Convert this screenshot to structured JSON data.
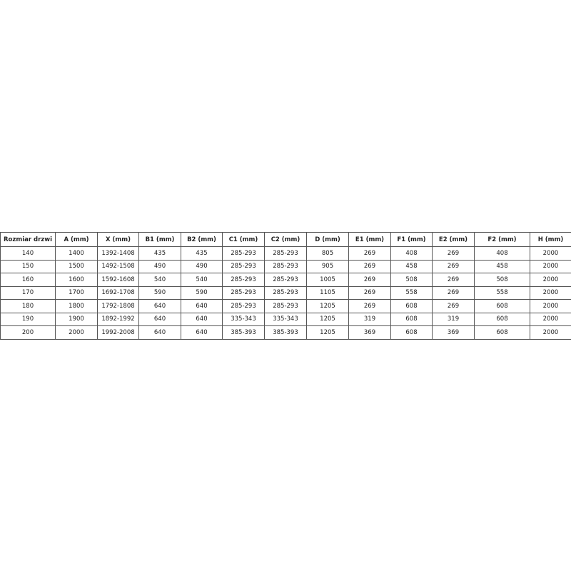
{
  "table": {
    "header": [
      "Rozmiar drzwi",
      "A (mm)",
      "X (mm)",
      "B1 (mm)",
      "B2 (mm)",
      "C1 (mm)",
      "C2 (mm)",
      "D (mm)",
      "E1 (mm)",
      "F1 (mm)",
      "E2 (mm)",
      "F2 (mm)",
      "H (mm)"
    ],
    "rows": [
      [
        "140",
        "1400",
        "1392-1408",
        "435",
        "435",
        "285-293",
        "285-293",
        "805",
        "269",
        "408",
        "269",
        "408",
        "2000"
      ],
      [
        "150",
        "1500",
        "1492-1508",
        "490",
        "490",
        "285-293",
        "285-293",
        "905",
        "269",
        "458",
        "269",
        "458",
        "2000"
      ],
      [
        "160",
        "1600",
        "1592-1608",
        "540",
        "540",
        "285-293",
        "285-293",
        "1005",
        "269",
        "508",
        "269",
        "508",
        "2000"
      ],
      [
        "170",
        "1700",
        "1692-1708",
        "590",
        "590",
        "285-293",
        "285-293",
        "1105",
        "269",
        "558",
        "269",
        "558",
        "2000"
      ],
      [
        "180",
        "1800",
        "1792-1808",
        "640",
        "640",
        "285-293",
        "285-293",
        "1205",
        "269",
        "608",
        "269",
        "608",
        "2000"
      ],
      [
        "190",
        "1900",
        "1892-1992",
        "640",
        "640",
        "335-343",
        "335-343",
        "1205",
        "319",
        "608",
        "319",
        "608",
        "2000"
      ],
      [
        "200",
        "2000",
        "1992-2008",
        "640",
        "640",
        "385-393",
        "385-393",
        "1205",
        "369",
        "608",
        "369",
        "608",
        "2000"
      ]
    ]
  }
}
